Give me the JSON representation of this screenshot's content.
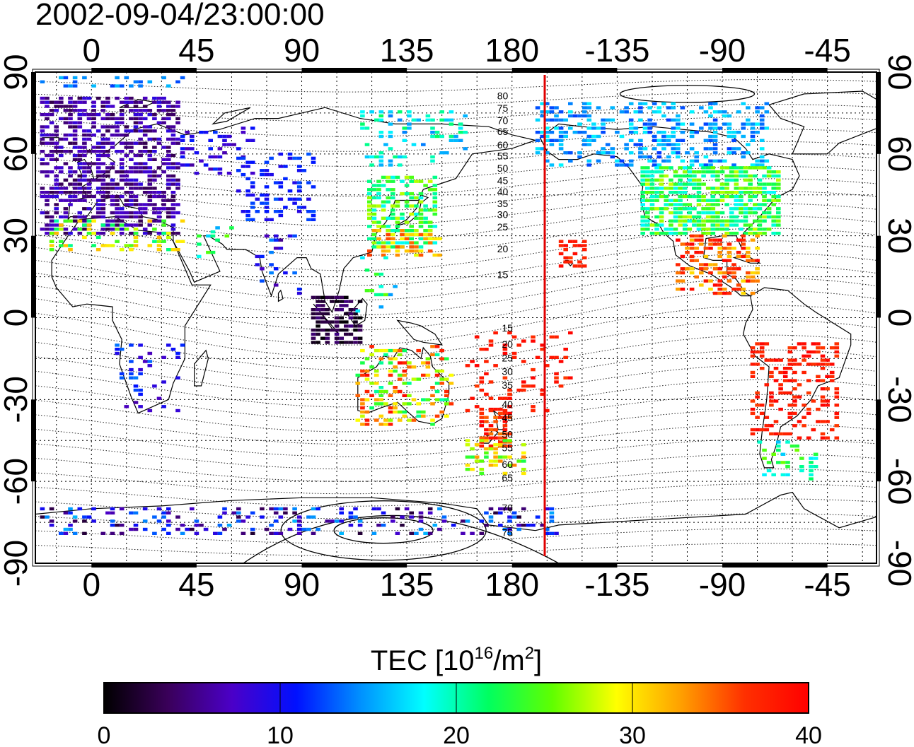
{
  "title": "2002-09-04/23:00:00",
  "map": {
    "projection": "equirectangular",
    "lon_range": [
      -24,
      336
    ],
    "lat_range": [
      -90,
      90
    ],
    "top_lon_labels": [
      "0",
      "45",
      "90",
      "135",
      "180",
      "-135",
      "-90",
      "-45"
    ],
    "bottom_lon_labels": [
      "0",
      "45",
      "90",
      "135",
      "180",
      "-135",
      "-90",
      "-45"
    ],
    "lon_tick_values": [
      0,
      45,
      90,
      135,
      180,
      225,
      270,
      315
    ],
    "left_lat_labels": [
      "90",
      "60",
      "30",
      "0",
      "-30",
      "-60",
      "-90"
    ],
    "right_lat_labels": [
      "90",
      "60",
      "30",
      "0",
      "-30",
      "-60",
      "-90"
    ],
    "lat_tick_values": [
      90,
      60,
      30,
      0,
      -30,
      -60,
      -90
    ],
    "terminator_lon": 194,
    "terminator_color": "#e00000",
    "grid": true
  },
  "contour_labels": {
    "north": [
      "80",
      "75",
      "70",
      "65",
      "60",
      "55",
      "50",
      "45",
      "40",
      "35",
      "30",
      "25",
      "20",
      "15"
    ],
    "north_lat": [
      80,
      75.5,
      71,
      67,
      62,
      58,
      53.5,
      49,
      45,
      40.5,
      36.5,
      32,
      24,
      14.5
    ],
    "south": [
      "15",
      "20",
      "25",
      "30",
      "35",
      "40",
      "45",
      "50",
      "55",
      "60",
      "65",
      "70",
      "75"
    ],
    "south_lat": [
      -5,
      -11,
      -16,
      -21,
      -26,
      -33,
      -38,
      -44,
      -49,
      -55,
      -60,
      -71,
      -80
    ]
  },
  "colorbar": {
    "label_prefix": "TEC  [10",
    "label_sup1": "16",
    "label_mid": "/m",
    "label_sup2": "2",
    "label_suffix": "]",
    "min": 0,
    "max": 40,
    "ticks": [
      "0",
      "10",
      "20",
      "30",
      "40"
    ],
    "tick_values": [
      0,
      10,
      20,
      30,
      40
    ],
    "stops": [
      "#000000",
      "#3a005a",
      "#4b00c8",
      "#0010ff",
      "#0090ff",
      "#00ffff",
      "#00ff60",
      "#60ff00",
      "#ffff00",
      "#ffa000",
      "#ff3000",
      "#ff0000"
    ]
  },
  "tec_regions": [
    {
      "name": "europe",
      "lon": [
        -22,
        38
      ],
      "lat": [
        30,
        80
      ],
      "v": [
        3,
        9
      ],
      "d": 0.6
    },
    {
      "name": "west-russia",
      "lon": [
        38,
        70
      ],
      "lat": [
        52,
        70
      ],
      "v": [
        6,
        12
      ],
      "d": 0.25
    },
    {
      "name": "central-asia",
      "lon": [
        62,
        95
      ],
      "lat": [
        35,
        60
      ],
      "v": [
        9,
        13
      ],
      "d": 0.3
    },
    {
      "name": "north-africa-med",
      "lon": [
        -18,
        40
      ],
      "lat": [
        24,
        36
      ],
      "v": [
        20,
        32
      ],
      "d": 0.3
    },
    {
      "name": "arabia",
      "lon": [
        45,
        60
      ],
      "lat": [
        20,
        35
      ],
      "v": [
        14,
        26
      ],
      "d": 0.2
    },
    {
      "name": "india",
      "lon": [
        70,
        90
      ],
      "lat": [
        8,
        30
      ],
      "v": [
        4,
        15
      ],
      "d": 0.15
    },
    {
      "name": "se-asia",
      "lon": [
        94,
        115
      ],
      "lat": [
        -10,
        8
      ],
      "v": [
        0,
        5
      ],
      "d": 0.6
    },
    {
      "name": "east-asia",
      "lon": [
        118,
        148
      ],
      "lat": [
        25,
        52
      ],
      "v": [
        18,
        28
      ],
      "d": 0.55
    },
    {
      "name": "japan-south",
      "lon": [
        118,
        150
      ],
      "lat": [
        22,
        32
      ],
      "v": [
        28,
        36
      ],
      "d": 0.45
    },
    {
      "name": "philippines",
      "lon": [
        113,
        130
      ],
      "lat": [
        0,
        22
      ],
      "v": [
        14,
        26
      ],
      "d": 0.15
    },
    {
      "name": "siberia-east",
      "lon": [
        115,
        160
      ],
      "lat": [
        55,
        75
      ],
      "v": [
        14,
        22
      ],
      "d": 0.2
    },
    {
      "name": "australia",
      "lon": [
        113,
        155
      ],
      "lat": [
        -40,
        -10
      ],
      "v": [
        20,
        40
      ],
      "d": 0.35
    },
    {
      "name": "new-zealand",
      "lon": [
        166,
        180
      ],
      "lat": [
        -48,
        -33
      ],
      "v": [
        34,
        40
      ],
      "d": 0.6
    },
    {
      "name": "pacific-south",
      "lon": [
        160,
        205
      ],
      "lat": [
        -35,
        -5
      ],
      "v": [
        36,
        40
      ],
      "d": 0.15
    },
    {
      "name": "hawaii",
      "lon": [
        200,
        212
      ],
      "lat": [
        18,
        28
      ],
      "v": [
        36,
        40
      ],
      "d": 0.6
    },
    {
      "name": "alaska-canada",
      "lon": [
        190,
        290
      ],
      "lat": [
        55,
        78
      ],
      "v": [
        12,
        18
      ],
      "d": 0.35
    },
    {
      "name": "north-america",
      "lon": [
        235,
        295
      ],
      "lat": [
        30,
        55
      ],
      "v": [
        18,
        28
      ],
      "d": 0.7
    },
    {
      "name": "central-america",
      "lon": [
        250,
        285
      ],
      "lat": [
        8,
        30
      ],
      "v": [
        30,
        40
      ],
      "d": 0.5
    },
    {
      "name": "south-america",
      "lon": [
        282,
        320
      ],
      "lat": [
        -45,
        -10
      ],
      "v": [
        36,
        40
      ],
      "d": 0.35
    },
    {
      "name": "africa-south",
      "lon": [
        10,
        40
      ],
      "lat": [
        -35,
        -10
      ],
      "v": [
        6,
        14
      ],
      "d": 0.15
    },
    {
      "name": "antarctic-ring",
      "lon": [
        -22,
        200
      ],
      "lat": [
        -80,
        -70
      ],
      "v": [
        2,
        16
      ],
      "d": 0.25
    },
    {
      "name": "arctic-top",
      "lon": [
        -22,
        40
      ],
      "lat": [
        84,
        88
      ],
      "v": [
        12,
        16
      ],
      "d": 0.3
    },
    {
      "name": "patagonia",
      "lon": [
        285,
        310
      ],
      "lat": [
        -60,
        -45
      ],
      "v": [
        16,
        26
      ],
      "d": 0.25
    },
    {
      "name": "s-pacific-lowlat",
      "lon": [
        160,
        185
      ],
      "lat": [
        -58,
        -45
      ],
      "v": [
        22,
        34
      ],
      "d": 0.3
    }
  ]
}
